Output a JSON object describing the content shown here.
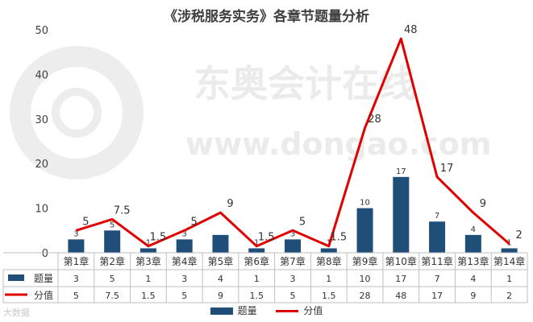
{
  "title": "《涉税服务实务》各章节题量分析",
  "watermark": {
    "brand": "东奥会计在线",
    "url": "www.dongao.com",
    "footer": "大数据"
  },
  "chart_data": {
    "type": "bar",
    "categories": [
      "第1章",
      "第2章",
      "第3章",
      "第4章",
      "第5章",
      "第6章",
      "第7章",
      "第8章",
      "第9章",
      "第10章",
      "第11章",
      "第13章",
      "第14章"
    ],
    "series": [
      {
        "name": "题量",
        "type": "bar",
        "color": "#1F4E79",
        "values": [
          3,
          5,
          1,
          3,
          4,
          1,
          3,
          1,
          10,
          17,
          7,
          4,
          1
        ],
        "table_values": [
          "3",
          "5",
          "1",
          "3",
          "4",
          "1",
          "3",
          "1",
          "10",
          "17",
          "7",
          "4",
          "1"
        ],
        "labels": [
          "3",
          "5",
          "1",
          "3",
          "",
          "1",
          "3",
          "1",
          "10",
          "17",
          "7",
          "4",
          "1"
        ]
      },
      {
        "name": "分值",
        "type": "line",
        "color": "#E00000",
        "values": [
          5,
          7.5,
          1.5,
          5,
          9,
          1.5,
          5,
          1.5,
          28,
          48,
          17,
          9,
          2
        ],
        "table_values": [
          "5",
          "7.5",
          "1.5",
          "5",
          "9",
          "1.5",
          "5",
          "1.5",
          "28",
          "48",
          "17",
          "9",
          "2"
        ],
        "labels": [
          "5",
          "7.5",
          "1.5",
          "5",
          "9",
          "1.5",
          "5",
          "1.5",
          "28",
          "48",
          "17",
          "9",
          "2"
        ]
      }
    ],
    "ylim": [
      0,
      50
    ],
    "yticks": [
      "0",
      "10",
      "20",
      "30",
      "40",
      "50"
    ],
    "grid": false,
    "legend": "bottom",
    "data_table": true
  }
}
